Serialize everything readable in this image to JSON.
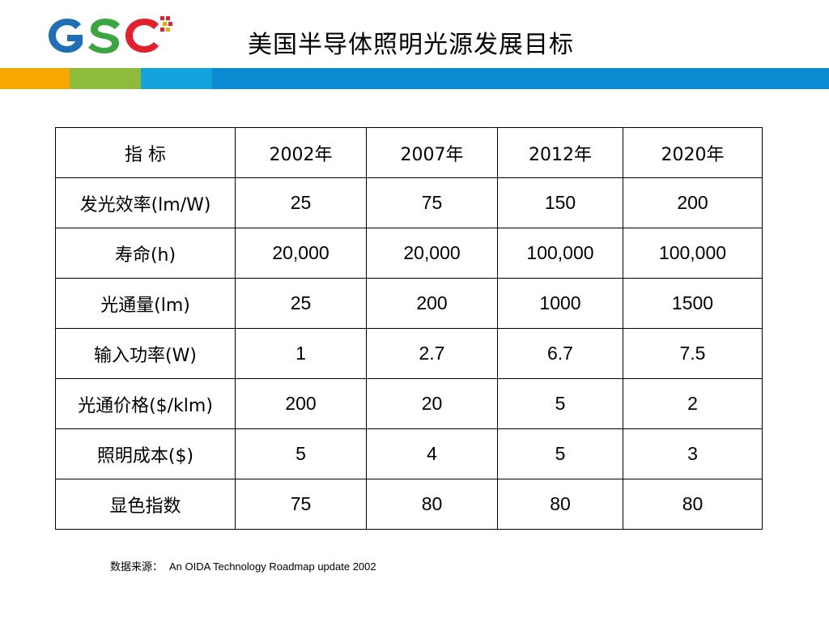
{
  "logo": {
    "text": "GSC",
    "colors": {
      "g": "#1e6fb5",
      "s": "#3aa642",
      "c": "#e5202e"
    }
  },
  "title": "美国半导体照明光源发展目标",
  "bands": [
    "#f6a800",
    "#8dbb3c",
    "#12a3dc",
    "#0a8ad1"
  ],
  "table": {
    "header": [
      "指 标",
      "2002年",
      "2007年",
      "2012年",
      "2020年"
    ],
    "rows": [
      {
        "label": "发光效率(lm/W)",
        "values": [
          "25",
          "75",
          "150",
          "200"
        ]
      },
      {
        "label": "寿命(h)",
        "values": [
          "20,000",
          "20,000",
          "100,000",
          "100,000"
        ]
      },
      {
        "label": "光通量(lm)",
        "values": [
          "25",
          "200",
          "1000",
          "1500"
        ]
      },
      {
        "label": "输入功率(W)",
        "values": [
          "1",
          "2.7",
          "6.7",
          "7.5"
        ]
      },
      {
        "label": "光通价格($/klm)",
        "values": [
          "200",
          "20",
          "5",
          "2"
        ]
      },
      {
        "label": "照明成本($)",
        "values": [
          "5",
          "4",
          "5",
          "3"
        ]
      },
      {
        "label": "显色指数",
        "values": [
          "75",
          "80",
          "80",
          "80"
        ]
      }
    ]
  },
  "source": {
    "label": "数据来源：",
    "text": "An OIDA Technology Roadmap update 2002"
  }
}
